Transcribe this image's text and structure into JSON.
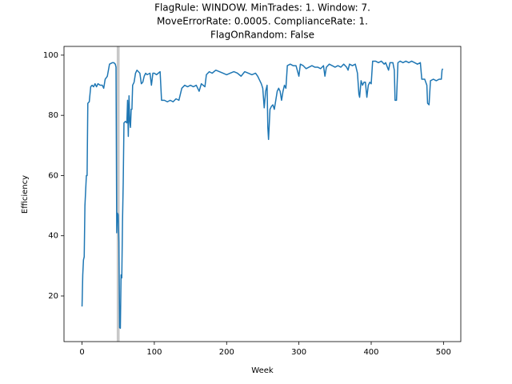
{
  "chart_data": {
    "type": "line",
    "title": [
      "FlagRule: WINDOW. MinTrades: 1. Window: 7.",
      "MoveErrorRate: 0.0005. ComplianceRate: 1.",
      "FlagOnRandom: False"
    ],
    "x_label": "Week",
    "y_label": "Efficiency",
    "color": "#1f77b4",
    "span_color": "#c8c8c8",
    "highlight_span": [
      48,
      52
    ],
    "x": [
      0,
      1,
      2,
      3,
      4,
      5,
      6,
      7,
      8,
      10,
      12,
      14,
      16,
      18,
      20,
      22,
      25,
      28,
      30,
      32,
      35,
      38,
      42,
      44,
      46,
      47,
      48,
      49,
      50,
      51,
      52,
      53,
      54,
      55,
      56,
      57,
      58,
      60,
      62,
      63,
      64,
      65,
      66,
      67,
      68,
      69,
      70,
      72,
      74,
      76,
      78,
      80,
      82,
      84,
      86,
      88,
      90,
      94,
      96,
      98,
      100,
      103,
      108,
      110,
      114,
      118,
      122,
      126,
      130,
      134,
      138,
      142,
      146,
      150,
      154,
      158,
      162,
      165,
      170,
      172,
      176,
      180,
      185,
      190,
      195,
      200,
      205,
      210,
      215,
      220,
      225,
      230,
      235,
      240,
      243,
      245,
      248,
      250,
      252,
      254,
      256,
      257,
      258,
      259,
      260,
      262,
      264,
      266,
      268,
      270,
      272,
      274,
      276,
      278,
      280,
      282,
      284,
      288,
      292,
      296,
      300,
      302,
      306,
      310,
      314,
      318,
      322,
      326,
      330,
      334,
      336,
      338,
      342,
      346,
      350,
      354,
      358,
      362,
      366,
      368,
      370,
      374,
      378,
      381,
      383,
      384,
      386,
      388,
      390,
      392,
      394,
      396,
      398,
      400,
      402,
      406,
      410,
      414,
      418,
      420,
      424,
      426,
      430,
      432,
      433,
      435,
      437,
      440,
      444,
      448,
      452,
      456,
      460,
      464,
      468,
      470,
      474,
      477,
      478,
      480,
      482,
      486,
      490,
      494,
      497,
      498,
      499
    ],
    "values": [
      16.5,
      27,
      32,
      33,
      50,
      55,
      60,
      60,
      84,
      84.5,
      89.5,
      90,
      89.5,
      90.5,
      89.5,
      90.5,
      90,
      90,
      89,
      92,
      93,
      97,
      97.5,
      97.5,
      97,
      96,
      41,
      47.5,
      47,
      38,
      9.5,
      9.3,
      27,
      26,
      45,
      58,
      77.5,
      78,
      77.5,
      85,
      73,
      86.5,
      78,
      76,
      82,
      82,
      90,
      91,
      94,
      95,
      94.5,
      94,
      90.5,
      91,
      93,
      94,
      93.5,
      94,
      90,
      94,
      94,
      93.5,
      94.5,
      85,
      85,
      84.5,
      85,
      84.5,
      85.5,
      85,
      89,
      90,
      89.5,
      90,
      89.5,
      90,
      88,
      90.5,
      89.5,
      93.5,
      94.5,
      94,
      95,
      94.5,
      94,
      93.5,
      94,
      94.5,
      94,
      93,
      94.5,
      94,
      93.5,
      94,
      93,
      92,
      90.5,
      89,
      82.5,
      88,
      90,
      76,
      72,
      77,
      82,
      83,
      83.5,
      82,
      85,
      88,
      89,
      88,
      85,
      88,
      90,
      89,
      96.5,
      97,
      96.5,
      96.5,
      93,
      97,
      96.5,
      95.5,
      96,
      96.5,
      96,
      96,
      95.5,
      96.5,
      93,
      96,
      97,
      96.5,
      96,
      96.5,
      96,
      97,
      96,
      95,
      97,
      96.5,
      97,
      94,
      87,
      86,
      91.5,
      90,
      91,
      91,
      86,
      90,
      91,
      90.5,
      98,
      98,
      97.5,
      98,
      97,
      97.5,
      95,
      97.5,
      97.5,
      95,
      85,
      85,
      97.5,
      98,
      97.5,
      98,
      97.5,
      98,
      97.5,
      97,
      97.5,
      92,
      92,
      90,
      84,
      83.5,
      91.5,
      92,
      91.5,
      92,
      92,
      95,
      95.5
    ],
    "xlim": [
      -24.95,
      523.95
    ],
    "ylim": [
      4.85,
      102.9
    ],
    "xticks": [
      0,
      100,
      200,
      300,
      400,
      500
    ],
    "yticks": [
      20,
      40,
      60,
      80,
      100
    ]
  }
}
